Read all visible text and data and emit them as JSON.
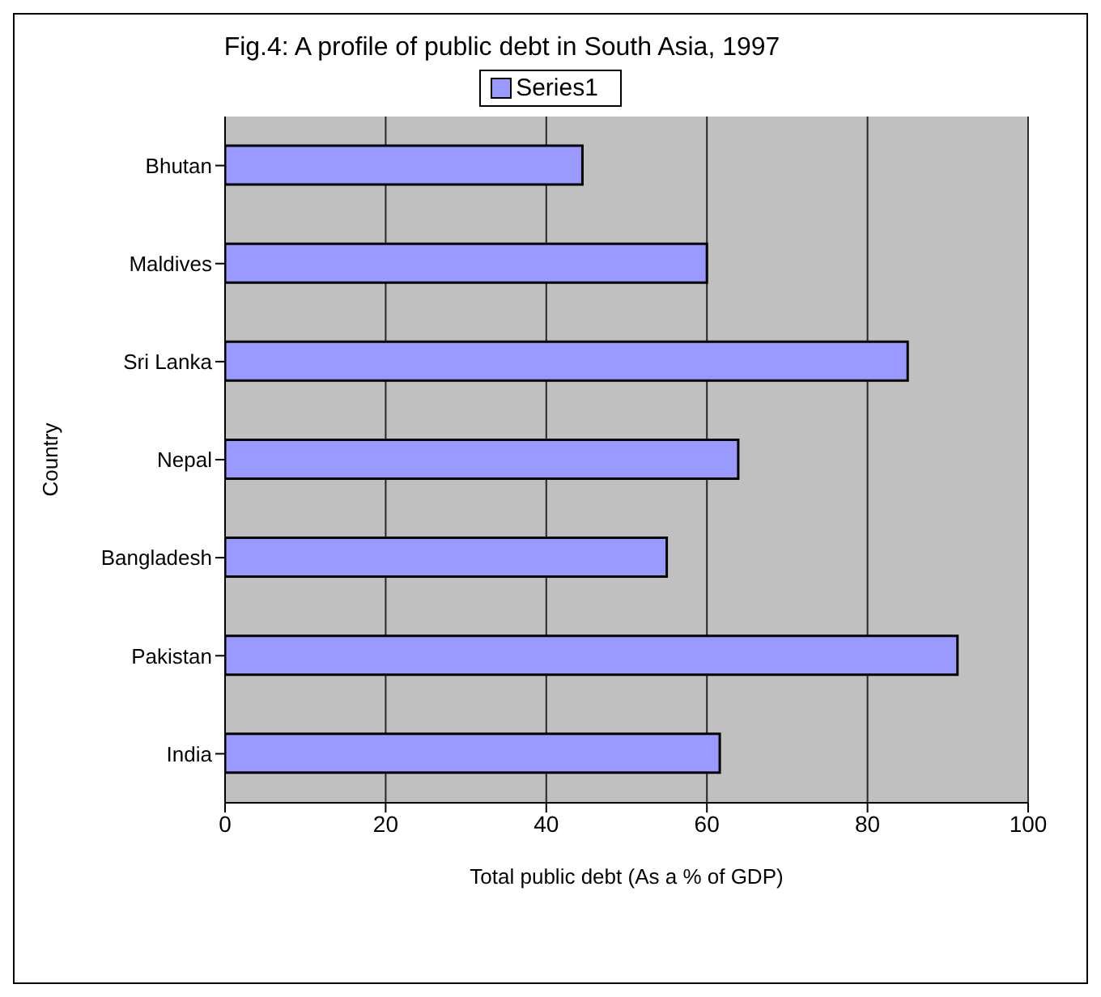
{
  "chart_data": {
    "type": "bar",
    "orientation": "horizontal",
    "title": "Fig.4: A profile of public debt in South Asia, 1997",
    "xlabel": "Total public debt (As a % of GDP)",
    "ylabel": "Country",
    "categories": [
      "Bhutan",
      "Maldives",
      "Sri Lanka",
      "Nepal",
      "Bangladesh",
      "Pakistan",
      "India"
    ],
    "series": [
      {
        "name": "Series1",
        "color": "#9999ff",
        "values": [
          44.5,
          60.0,
          85.0,
          63.9,
          55.0,
          91.2,
          61.6
        ]
      }
    ],
    "xlim": [
      0,
      100
    ],
    "xticks": [
      0,
      20,
      40,
      60,
      80,
      100
    ],
    "grid": "x",
    "legend": "top"
  }
}
